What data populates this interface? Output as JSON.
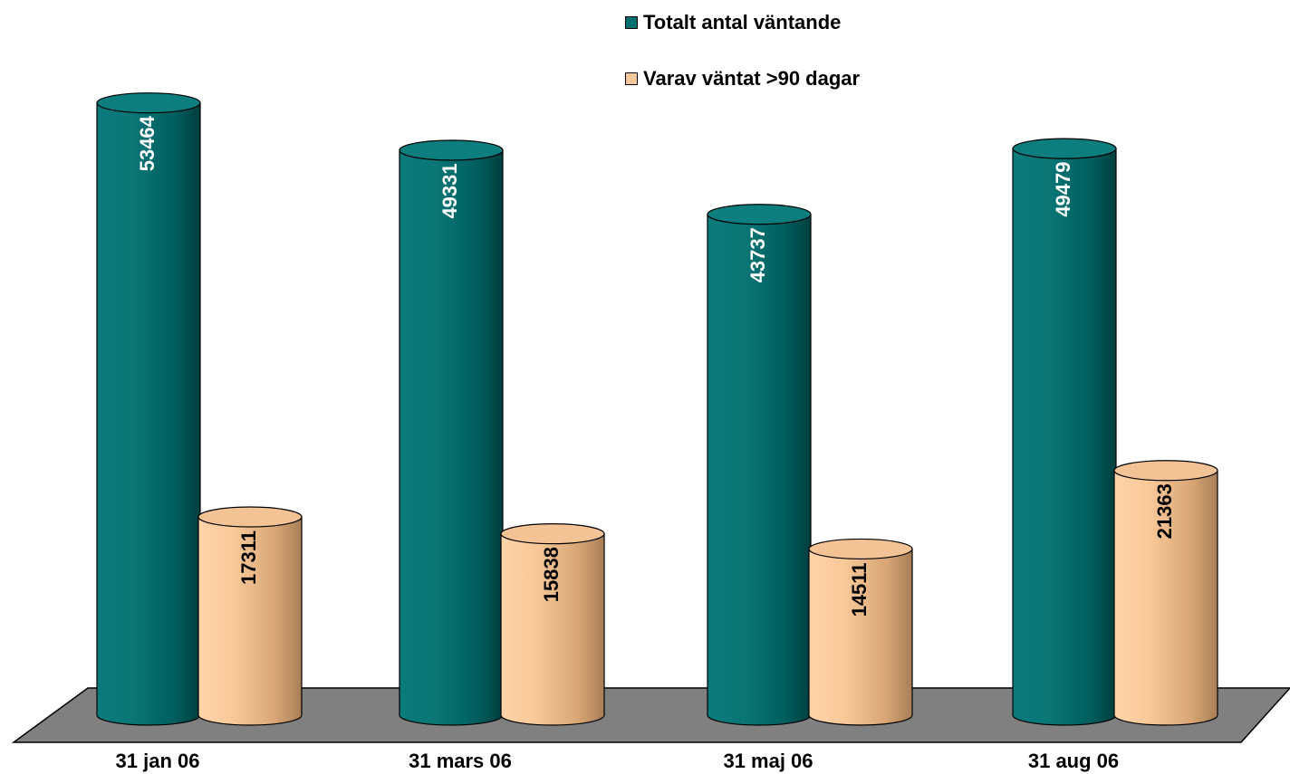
{
  "chart_data": {
    "type": "bar",
    "style": "3d-cylinder",
    "categories": [
      "31 jan 06",
      "31 mars 06",
      "31 maj 06",
      "31 aug 06"
    ],
    "series": [
      {
        "name": "Totalt antal väntande",
        "values": [
          53464,
          49331,
          43737,
          49479
        ],
        "color": "#007070",
        "label_color": "#ffffff"
      },
      {
        "name": "Varav väntat >90 dagar",
        "values": [
          17311,
          15838,
          14511,
          21363
        ],
        "color": "#f5c89c",
        "label_color": "#000000"
      }
    ],
    "floor_color": "#808080",
    "legend_placement": "top-right",
    "grid": false
  }
}
